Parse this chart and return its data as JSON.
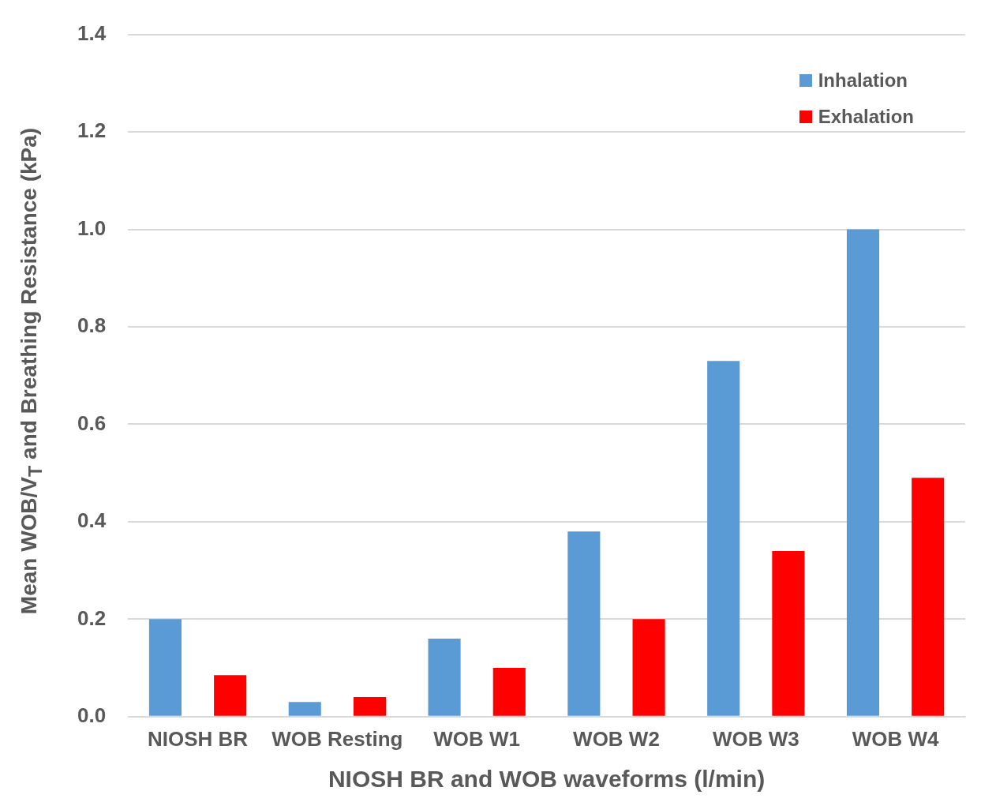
{
  "chart_data": {
    "type": "bar",
    "categories": [
      "NIOSH BR",
      "WOB Resting",
      "WOB W1",
      "WOB W2",
      "WOB W3",
      "WOB W4"
    ],
    "series": [
      {
        "name": "Inhalation",
        "color": "#5b9bd5",
        "values": [
          0.2,
          0.03,
          0.16,
          0.38,
          0.73,
          1.0
        ]
      },
      {
        "name": "Exhalation",
        "color": "#ff0000",
        "values": [
          0.085,
          0.04,
          0.1,
          0.2,
          0.34,
          0.49
        ]
      }
    ],
    "xlabel": "NIOSH BR and WOB waveforms (l/min)",
    "ylabel": "Mean WOB/V$_{T}$ and Breathing Resistance (kPa)",
    "ylim": [
      0,
      1.4
    ],
    "yticks": [
      {
        "value": 0,
        "label": "0.0"
      },
      0.2,
      0.4,
      0.6,
      0.8,
      {
        "value": 1,
        "label": "1.0"
      },
      1.2,
      1.4
    ],
    "grid": "y",
    "legend": "top right"
  }
}
